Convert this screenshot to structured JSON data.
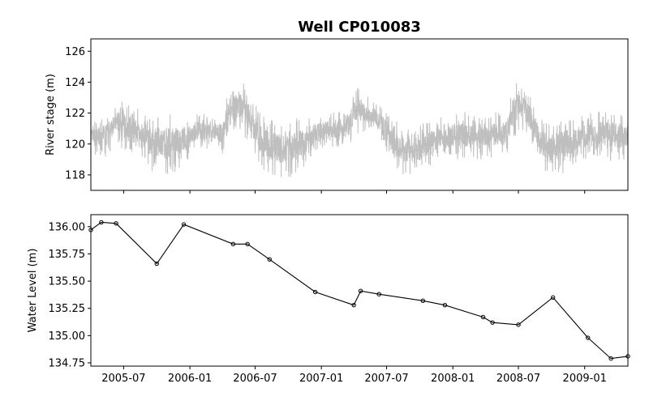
{
  "title": "Well CP010083",
  "chart_data": [
    {
      "type": "line",
      "title": "Well CP010083",
      "ylabel": "River stage (m)",
      "ylim": [
        117,
        126.8
      ],
      "yticks": [
        118,
        120,
        122,
        124,
        126
      ],
      "xlim": [
        "2005-04-01",
        "2009-05-01"
      ],
      "series": [
        {
          "color": "#bfbfbf",
          "x": [
            "2005-04-01",
            "2005-04-15",
            "2005-05-01",
            "2005-05-15",
            "2005-06-01",
            "2005-06-15",
            "2005-07-01",
            "2005-07-15",
            "2005-08-01",
            "2005-08-15",
            "2005-09-01",
            "2005-09-15",
            "2005-10-01",
            "2005-10-15",
            "2005-11-01",
            "2005-11-15",
            "2005-12-01",
            "2005-12-15",
            "2006-01-01",
            "2006-01-15",
            "2006-02-01",
            "2006-02-15",
            "2006-03-01",
            "2006-03-15",
            "2006-04-01",
            "2006-04-15",
            "2006-05-01",
            "2006-05-15",
            "2006-06-01",
            "2006-06-15",
            "2006-07-01",
            "2006-07-15",
            "2006-08-01",
            "2006-08-15",
            "2006-09-01",
            "2006-09-15",
            "2006-10-01",
            "2006-10-15",
            "2006-11-01",
            "2006-11-15",
            "2006-12-01",
            "2006-12-15",
            "2007-01-01",
            "2007-01-15",
            "2007-02-01",
            "2007-02-15",
            "2007-03-01",
            "2007-03-15",
            "2007-04-01",
            "2007-04-15",
            "2007-05-01",
            "2007-05-15",
            "2007-06-01",
            "2007-06-15",
            "2007-07-01",
            "2007-07-15",
            "2007-08-01",
            "2007-08-15",
            "2007-09-01",
            "2007-09-15",
            "2007-10-01",
            "2007-10-15",
            "2007-11-01",
            "2007-11-15",
            "2007-12-01",
            "2007-12-15",
            "2008-01-01",
            "2008-01-15",
            "2008-02-01",
            "2008-02-15",
            "2008-03-01",
            "2008-03-15",
            "2008-04-01",
            "2008-04-15",
            "2008-05-01",
            "2008-05-15",
            "2008-06-01",
            "2008-06-15",
            "2008-07-01",
            "2008-07-15",
            "2008-08-01",
            "2008-08-15",
            "2008-09-01",
            "2008-09-15",
            "2008-10-01",
            "2008-10-15",
            "2008-11-01",
            "2008-11-15",
            "2008-12-01",
            "2008-12-15",
            "2009-01-01",
            "2009-01-15",
            "2009-02-01",
            "2009-02-15",
            "2009-03-01",
            "2009-03-15",
            "2009-04-01",
            "2009-04-15",
            "2009-05-01"
          ],
          "low": [
            119.3,
            119.4,
            119.5,
            119.4,
            120.2,
            120.4,
            119.8,
            119.6,
            119.9,
            119.5,
            119.0,
            118.6,
            118.3,
            118.2,
            118.3,
            118.4,
            118.6,
            118.9,
            119.3,
            119.6,
            119.8,
            119.9,
            120.0,
            120.0,
            119.6,
            120.5,
            120.9,
            121.2,
            120.8,
            120.2,
            119.5,
            118.8,
            118.4,
            118.3,
            118.2,
            118.1,
            118.1,
            118.2,
            118.5,
            118.8,
            119.2,
            119.5,
            119.7,
            119.8,
            119.9,
            120.0,
            119.8,
            120.0,
            120.7,
            121.0,
            121.1,
            121.0,
            120.8,
            120.3,
            119.7,
            119.0,
            118.5,
            118.3,
            118.2,
            118.2,
            118.3,
            118.6,
            118.9,
            119.1,
            119.2,
            119.3,
            119.3,
            119.3,
            119.3,
            119.3,
            119.3,
            119.3,
            119.3,
            119.4,
            119.4,
            119.4,
            119.6,
            120.4,
            120.9,
            121.1,
            120.6,
            119.8,
            118.9,
            118.4,
            118.3,
            118.2,
            118.3,
            118.6,
            118.9,
            119.2,
            119.3,
            119.3,
            119.2,
            119.2,
            119.2,
            119.2,
            119.2,
            119.2,
            119.2
          ],
          "high": [
            121.3,
            121.5,
            121.6,
            121.7,
            122.2,
            122.5,
            122.8,
            122.4,
            122.2,
            122.0,
            121.7,
            121.5,
            121.5,
            121.6,
            121.8,
            121.8,
            121.8,
            121.7,
            121.6,
            121.7,
            121.8,
            121.7,
            121.5,
            121.6,
            121.7,
            123.0,
            123.5,
            124.1,
            123.8,
            123.2,
            122.4,
            121.8,
            121.5,
            121.4,
            121.3,
            121.3,
            121.3,
            121.4,
            121.5,
            121.6,
            121.7,
            121.8,
            121.8,
            121.9,
            122.0,
            122.0,
            121.9,
            122.5,
            123.2,
            123.5,
            123.0,
            122.8,
            122.5,
            122.3,
            122.0,
            121.6,
            121.2,
            121.0,
            120.9,
            120.9,
            121.0,
            121.2,
            121.3,
            121.5,
            121.6,
            121.7,
            121.8,
            121.9,
            121.9,
            121.9,
            121.9,
            121.8,
            121.8,
            121.9,
            121.9,
            121.9,
            122.0,
            123.5,
            124.1,
            123.6,
            123.0,
            122.3,
            121.6,
            121.3,
            121.3,
            121.4,
            121.5,
            121.5,
            121.6,
            121.6,
            121.7,
            121.8,
            121.9,
            122.0,
            122.0,
            122.0,
            121.9,
            121.8,
            121.8
          ]
        }
      ]
    },
    {
      "type": "line",
      "ylabel": "Water Level (m)",
      "ylim": [
        134.72,
        136.11
      ],
      "yticks": [
        134.75,
        135.0,
        135.25,
        135.5,
        135.75,
        136.0
      ],
      "ytick_labels": [
        "134.75",
        "135.00",
        "135.25",
        "135.50",
        "135.75",
        "136.00"
      ],
      "xlim": [
        "2005-04-01",
        "2009-05-01"
      ],
      "xticks": [
        "2005-07-01",
        "2006-01-01",
        "2006-07-01",
        "2007-01-01",
        "2007-07-01",
        "2008-01-01",
        "2008-07-01",
        "2009-01-01"
      ],
      "xtick_labels": [
        "2005-07",
        "2006-01",
        "2006-07",
        "2007-01",
        "2007-07",
        "2008-01",
        "2008-07",
        "2009-01"
      ],
      "series": [
        {
          "color": "#000000",
          "marker": "circle",
          "points": [
            [
              "2005-04-01",
              135.97
            ],
            [
              "2005-04-30",
              136.04
            ],
            [
              "2005-06-10",
              136.03
            ],
            [
              "2005-10-01",
              135.66
            ],
            [
              "2005-12-15",
              136.02
            ],
            [
              "2006-05-01",
              135.84
            ],
            [
              "2006-06-10",
              135.84
            ],
            [
              "2006-08-10",
              135.7
            ],
            [
              "2006-12-15",
              135.4
            ],
            [
              "2007-04-01",
              135.28
            ],
            [
              "2007-04-20",
              135.41
            ],
            [
              "2007-06-10",
              135.38
            ],
            [
              "2007-10-10",
              135.32
            ],
            [
              "2007-12-10",
              135.28
            ],
            [
              "2008-03-25",
              135.17
            ],
            [
              "2008-04-20",
              135.12
            ],
            [
              "2008-07-01",
              135.1
            ],
            [
              "2008-10-05",
              135.35
            ],
            [
              "2009-01-10",
              134.98
            ],
            [
              "2009-03-15",
              134.79
            ],
            [
              "2009-05-01",
              134.81
            ]
          ]
        }
      ]
    }
  ]
}
